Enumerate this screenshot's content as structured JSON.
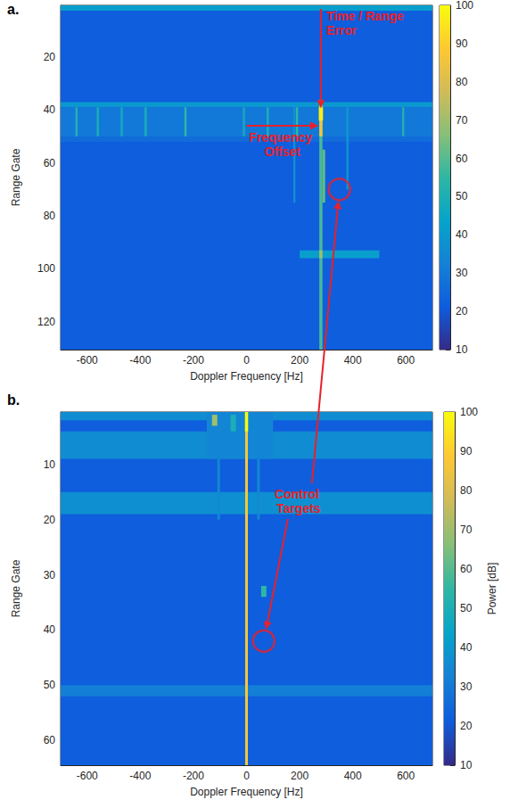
{
  "chart_data": [
    {
      "type": "heatmap",
      "title": "a.",
      "xlabel": "Doppler Frequency [Hz]",
      "ylabel": "Range Gate",
      "xlim": [
        -700,
        700
      ],
      "ylim": [
        0.5,
        130.5
      ],
      "xticks": [
        -600,
        -400,
        -200,
        0,
        200,
        400,
        600
      ],
      "yticks": [
        20,
        40,
        60,
        80,
        100,
        120
      ],
      "cells": [
        [
          -700,
          700,
          0.5,
          130.5,
          22
        ],
        [
          -700,
          700,
          0.5,
          2.5,
          42
        ],
        [
          -700,
          700,
          37,
          39,
          40
        ],
        [
          -700,
          700,
          39,
          50,
          30
        ],
        [
          -700,
          700,
          50,
          52,
          26
        ],
        [
          -644,
          -636,
          39,
          50,
          52
        ],
        [
          -564,
          -556,
          39,
          50,
          50
        ],
        [
          -474,
          -466,
          39,
          50,
          48
        ],
        [
          -384,
          -376,
          39,
          50,
          50
        ],
        [
          -234,
          -226,
          39,
          50,
          55
        ],
        [
          -14,
          -6,
          39,
          50,
          48
        ],
        [
          76,
          84,
          39,
          50,
          50
        ],
        [
          186,
          194,
          39,
          50,
          55
        ],
        [
          376,
          384,
          39,
          70,
          40
        ],
        [
          586,
          594,
          39,
          50,
          52
        ],
        [
          176,
          184,
          39,
          75,
          38
        ],
        [
          274,
          286,
          36,
          130.5,
          58
        ],
        [
          274,
          286,
          38,
          50,
          85
        ],
        [
          272,
          288,
          39,
          44,
          97
        ],
        [
          286,
          296,
          55,
          75,
          62
        ],
        [
          200,
          500,
          93,
          96,
          42
        ],
        [
          274,
          286,
          93,
          96,
          70
        ]
      ],
      "colorbar": {
        "range": [
          10,
          100
        ],
        "ticks": [
          10,
          20,
          30,
          40,
          50,
          60,
          70,
          80,
          90,
          100
        ]
      },
      "control_targets": [
        {
          "x": 350,
          "y": 70
        }
      ],
      "annotations": [
        {
          "text": "Time / Range Error",
          "x": 280,
          "y": 40
        },
        {
          "text": "Frequency Offset",
          "x": [
            0,
            270
          ],
          "y": 46
        }
      ]
    },
    {
      "type": "heatmap",
      "title": "b.",
      "xlabel": "Doppler Frequency [Hz]",
      "ylabel": "Range Gate",
      "xlim": [
        -700,
        700
      ],
      "ylim": [
        0.5,
        64.5
      ],
      "xticks": [
        -600,
        -400,
        -200,
        0,
        200,
        400,
        600
      ],
      "yticks": [
        10,
        20,
        30,
        40,
        50,
        60
      ],
      "cells": [
        [
          -700,
          700,
          0.5,
          64.5,
          22
        ],
        [
          -700,
          700,
          0.5,
          2,
          36
        ],
        [
          -700,
          700,
          4,
          9,
          36
        ],
        [
          -700,
          700,
          15,
          19,
          37
        ],
        [
          -700,
          700,
          50,
          52,
          32
        ],
        [
          -150,
          100,
          0.5,
          9,
          34
        ],
        [
          -130,
          -110,
          1,
          3,
          70
        ],
        [
          -60,
          -40,
          1,
          4,
          50
        ],
        [
          -110,
          -100,
          9,
          20,
          35
        ],
        [
          40,
          50,
          9,
          20,
          35
        ],
        [
          -5,
          5,
          0.5,
          64.5,
          88
        ],
        [
          -6,
          6,
          0.5,
          4,
          100
        ],
        [
          55,
          75,
          32,
          34,
          55
        ]
      ],
      "colorbar": {
        "range": [
          10,
          100
        ],
        "ticks": [
          10,
          20,
          30,
          40,
          50,
          60,
          70,
          80,
          90,
          100
        ],
        "label": "Power [dB]"
      },
      "control_targets": [
        {
          "x": 65,
          "y": 42
        }
      ],
      "annotations": [
        {
          "text": "Control Targets"
        }
      ]
    }
  ]
}
